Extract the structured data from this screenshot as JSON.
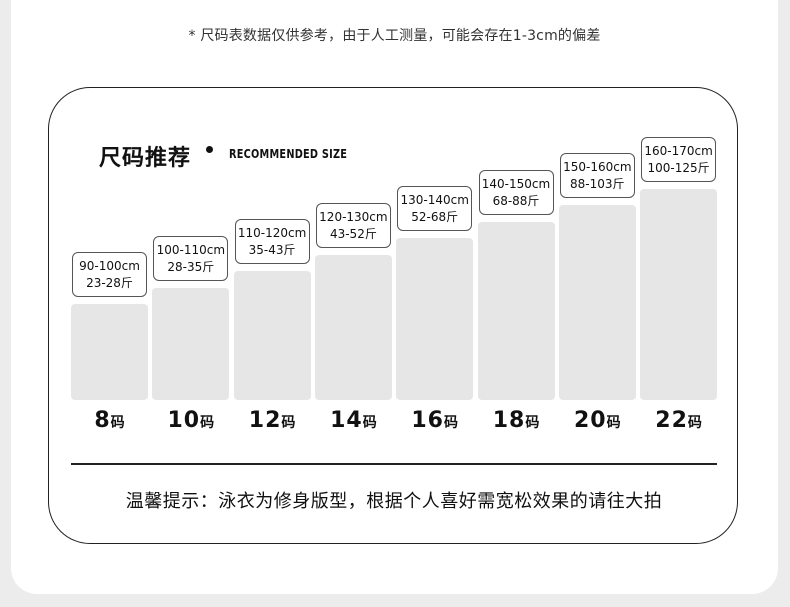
{
  "note": "* 尺码表数据仅供参考，由于人工测量，可能会存在1-3cm的偏差",
  "title_cn": "尺码推荐",
  "title_en": "RECOMMENDED SIZE",
  "size_unit": "码",
  "sizes": [
    {
      "size": "8",
      "height": "90-100cm",
      "weight": "23-28斤"
    },
    {
      "size": "10",
      "height": "100-110cm",
      "weight": "28-35斤"
    },
    {
      "size": "12",
      "height": "110-120cm",
      "weight": "35-43斤"
    },
    {
      "size": "14",
      "height": "120-130cm",
      "weight": "43-52斤"
    },
    {
      "size": "16",
      "height": "130-140cm",
      "weight": "52-68斤"
    },
    {
      "size": "18",
      "height": "140-150cm",
      "weight": "68-88斤"
    },
    {
      "size": "20",
      "height": "150-160cm",
      "weight": "88-103斤"
    },
    {
      "size": "22",
      "height": "160-170cm",
      "weight": "100-125斤"
    }
  ],
  "tip": "温馨提示：泳衣为修身版型，根据个人喜好需宽松效果的请往大拍",
  "colors": {
    "bar": "#e6e6e6",
    "border": "#222222",
    "page": "#ececec"
  }
}
